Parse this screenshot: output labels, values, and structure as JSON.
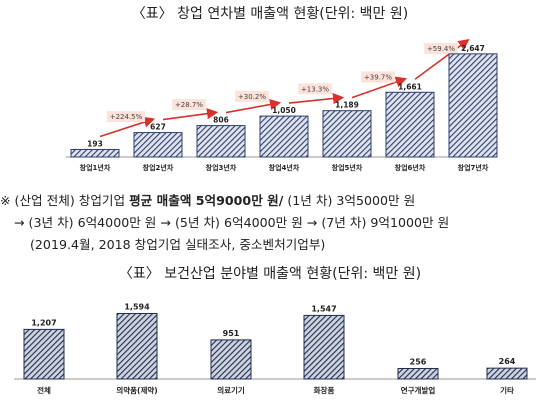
{
  "title1": "〈표〉 창업 연차별 매출액 현황(단위: 백만 원)",
  "note": {
    "line1": {
      "prefix": "※ (산업 전체) 창업기업 ",
      "bold": "평균 매출액 5억9000만 원/",
      "suffix": " (1년 차) 3억5000만 원"
    },
    "line2": "→ (3년 차) 6억4000만 원 → (5년 차) 6억4000만 원 → (7년 차) 9억1000만 원",
    "line3": "(2019.4월, 2018 창업기업 실태조사, 중소벤처기업부)"
  },
  "title2": "〈표〉 보건산업 분야별 매출액 현황(단위: 백만 원)",
  "chart_data": [
    {
      "type": "bar",
      "categories": [
        "창업1년차",
        "창업2년차",
        "창업3년차",
        "창업4년차",
        "창업5년차",
        "창업6년차",
        "창업7년차"
      ],
      "values": [
        193,
        627,
        806,
        1050,
        1189,
        1661,
        2647
      ],
      "value_labels": [
        "193",
        "627",
        "806",
        "1,050",
        "1,189",
        "1,661",
        "2,647"
      ],
      "growth_labels": [
        "+224.5%",
        "+28.7%",
        "+30.2%",
        "+13.3%",
        "+39.7%",
        "+59.4%"
      ],
      "ylim": [
        0,
        2900
      ],
      "grid": false,
      "bar_color": "#2e3f6e",
      "arrow_color": "#d9302c",
      "growth_box_color": "#fbe3d9"
    },
    {
      "type": "bar",
      "categories": [
        "전체",
        "의약품(제약)",
        "의료기기",
        "화장품",
        "연구개발업",
        "기타"
      ],
      "values": [
        1207,
        1594,
        951,
        1547,
        256,
        264
      ],
      "value_labels": [
        "1,207",
        "1,594",
        "951",
        "1,547",
        "256",
        "264"
      ],
      "ylim": [
        0,
        1800
      ],
      "grid": false,
      "bar_color": "#1f2c4f"
    }
  ]
}
